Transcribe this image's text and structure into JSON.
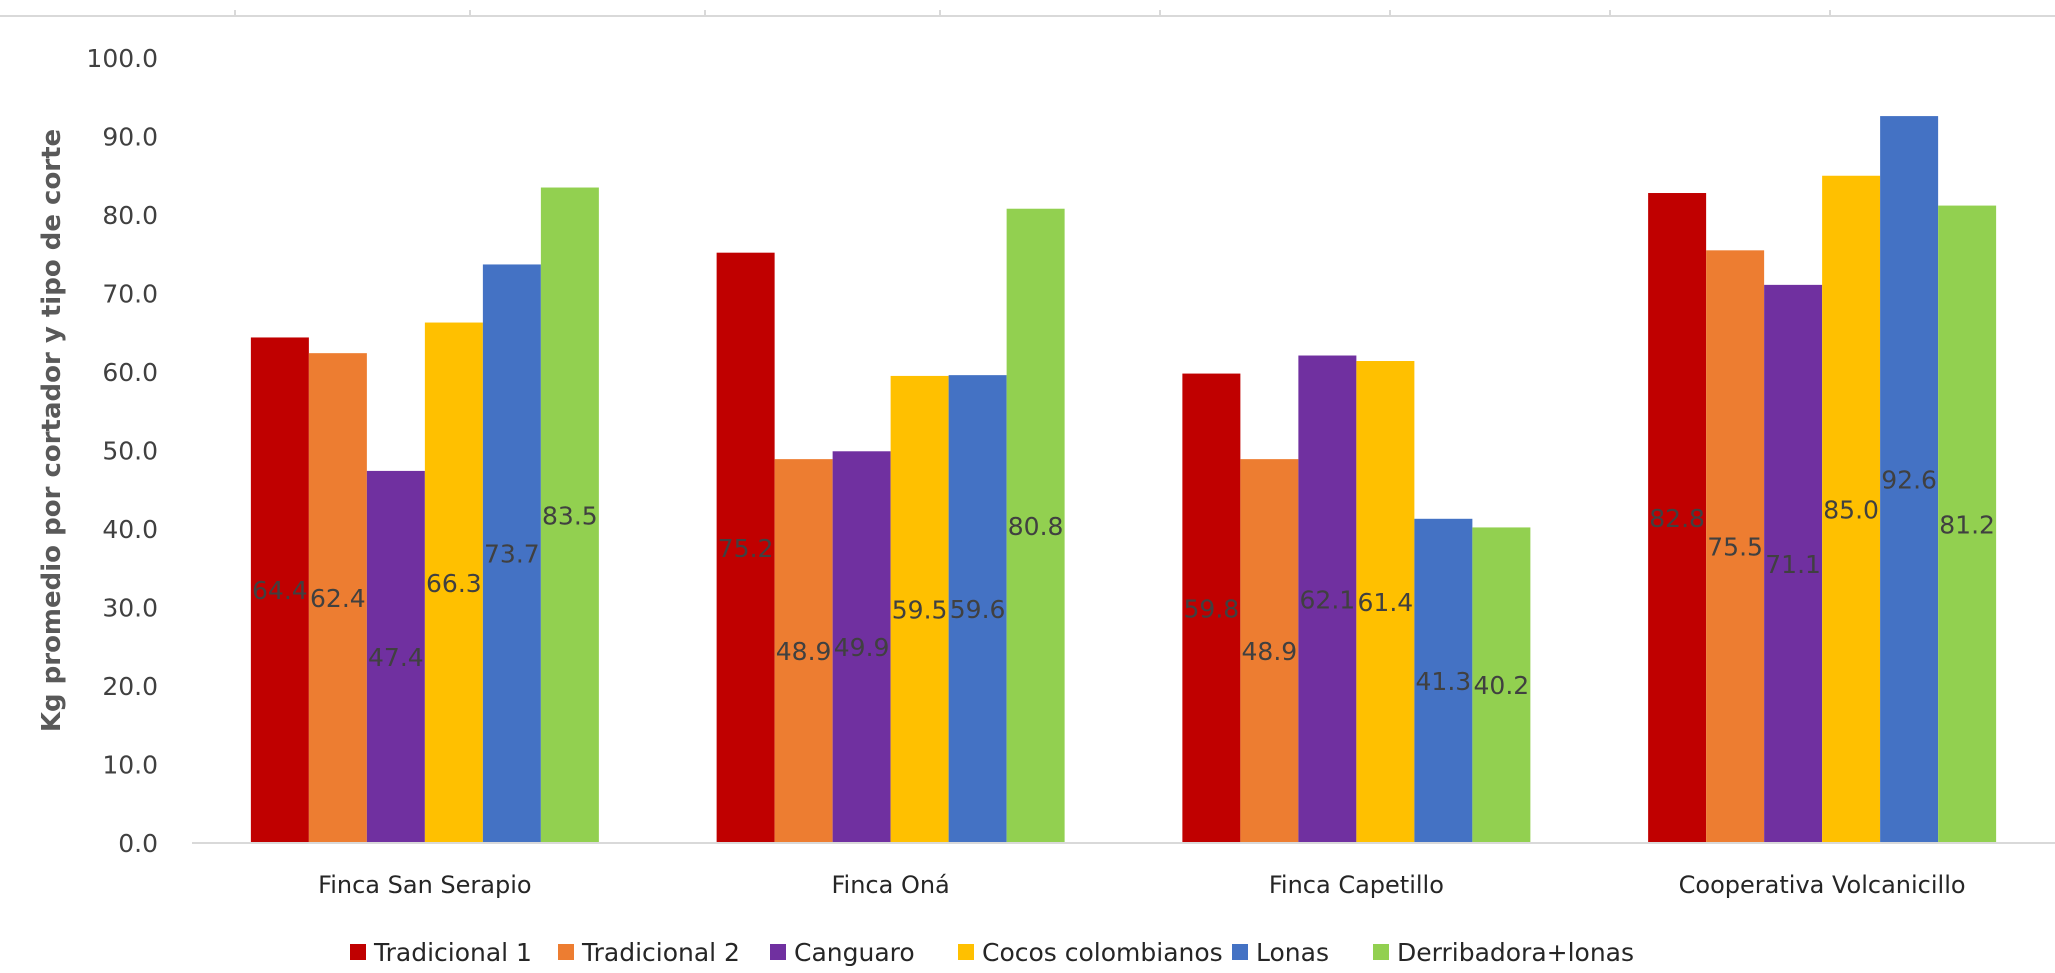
{
  "chart_data": {
    "type": "bar",
    "categories": [
      "Finca San Serapio",
      "Finca Oná",
      "Finca Capetillo",
      "Cooperativa Volcanicillo"
    ],
    "ylabel": "Kg promedio por cortador y tipo de corte",
    "xlabel": "",
    "ylim": [
      0,
      100
    ],
    "yticks": [
      "0.0",
      "10.0",
      "20.0",
      "30.0",
      "40.0",
      "50.0",
      "60.0",
      "70.0",
      "80.0",
      "90.0",
      "100.0"
    ],
    "grid": false,
    "legend_position": "bottom",
    "series": [
      {
        "name": "Tradicional 1",
        "color": "#c00000",
        "values": [
          64.4,
          75.2,
          59.8,
          82.8
        ],
        "labels": [
          "64.4",
          "75.2",
          "59.8",
          "82.8"
        ]
      },
      {
        "name": "Tradicional 2",
        "color": "#ed7d31",
        "values": [
          62.4,
          48.9,
          48.9,
          75.5
        ],
        "labels": [
          "62.4",
          "48.9",
          "48.9",
          "75.5"
        ]
      },
      {
        "name": "Canguaro",
        "color": "#7030a0",
        "values": [
          47.4,
          49.9,
          62.1,
          71.1
        ],
        "labels": [
          "47.4",
          "49.9",
          "62.1",
          "71.1"
        ]
      },
      {
        "name": "Cocos colombianos",
        "color": "#ffc000",
        "values": [
          66.3,
          59.5,
          61.4,
          85.0
        ],
        "labels": [
          "66.3",
          "59.5",
          "61.4",
          "85.0"
        ]
      },
      {
        "name": "Lonas",
        "color": "#4472c4",
        "values": [
          73.7,
          59.6,
          41.3,
          92.6
        ],
        "labels": [
          "73.7",
          "59.6",
          "41.3",
          "92.6"
        ]
      },
      {
        "name": "Derribadora+lonas",
        "color": "#92d050",
        "values": [
          83.5,
          80.8,
          40.2,
          81.2
        ],
        "labels": [
          "83.5",
          "80.8",
          "40.2",
          "81.2"
        ]
      }
    ]
  }
}
